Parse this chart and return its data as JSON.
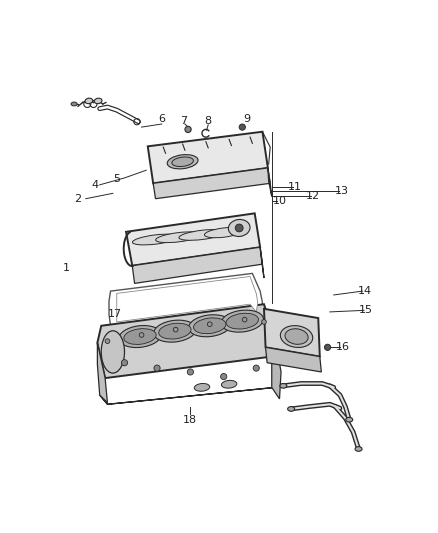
{
  "background_color": "#ffffff",
  "line_color": "#2a2a2a",
  "label_color": "#222222",
  "face_light": "#e8e8e8",
  "face_mid": "#d0d0d0",
  "face_dark": "#b8b8b8",
  "figsize": [
    4.38,
    5.33
  ],
  "dpi": 100
}
